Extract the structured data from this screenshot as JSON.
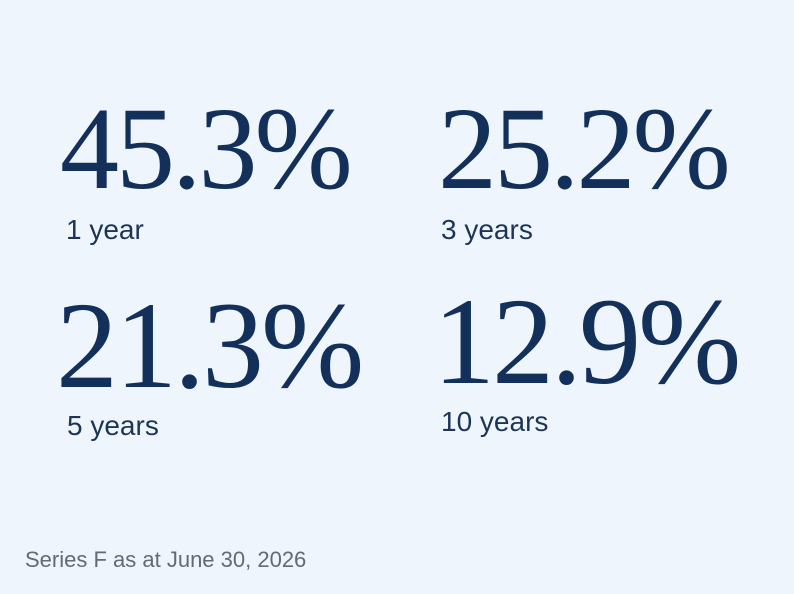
{
  "stats": [
    {
      "value": "45.3%",
      "label": "1 year"
    },
    {
      "value": "25.2%",
      "label": "3 years"
    },
    {
      "value": "21.3%",
      "label": "5 years"
    },
    {
      "value": "12.9%",
      "label": "10 years"
    }
  ],
  "footnote": "Series F as at June 30, 2026"
}
